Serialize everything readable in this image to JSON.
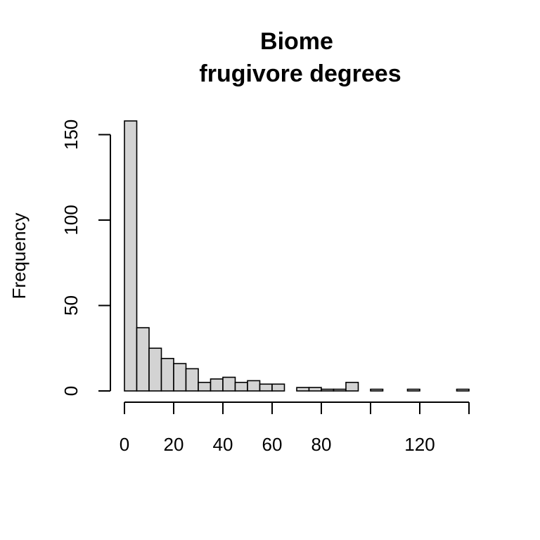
{
  "chart_data": {
    "type": "bar",
    "title_lines": [
      "Biome",
      "frugivore degrees"
    ],
    "xlabel": "",
    "ylabel": "Frequency",
    "bin_width": 5,
    "x_start": 0,
    "values": [
      158,
      37,
      25,
      19,
      16,
      13,
      5,
      7,
      8,
      5,
      6,
      4,
      4,
      0,
      2,
      2,
      1,
      1,
      5,
      0,
      1,
      0,
      0,
      1,
      0,
      0,
      0,
      1
    ],
    "xlim": [
      0,
      140
    ],
    "ylim": [
      0,
      158
    ],
    "xticks": [
      0,
      20,
      40,
      60,
      80,
      100,
      120,
      140
    ],
    "xtick_labels": [
      "0",
      "20",
      "40",
      "60",
      "80",
      "",
      "120",
      ""
    ],
    "yticks": [
      0,
      50,
      100,
      150
    ],
    "ytick_labels": [
      "0",
      "50",
      "100",
      "150"
    ],
    "grid": false,
    "colors": {
      "bar_fill": "#d3d3d3",
      "bar_stroke": "#000000"
    }
  }
}
